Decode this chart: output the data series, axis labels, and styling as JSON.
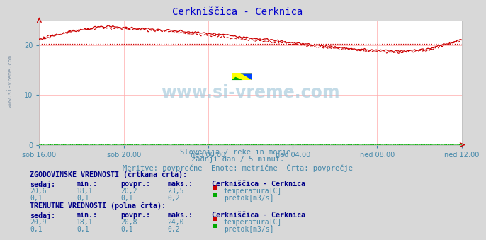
{
  "title": "Cerkniščica - Cerknica",
  "subtitle1": "Slovenija / reke in morje.",
  "subtitle2": "zadnji dan / 5 minut.",
  "subtitle3": "Meritve: povprečne  Enote: metrične  Črta: povprečje",
  "watermark_plot": "www.si-vreme.com",
  "watermark_side": "www.si-vreme.com",
  "xlabel_ticks": [
    "sob 16:00",
    "sob 20:00",
    "ned 00:00",
    "ned 04:00",
    "ned 08:00",
    "ned 12:00"
  ],
  "ylim": [
    0,
    25
  ],
  "yticks": [
    0,
    10,
    20
  ],
  "grid_color": "#ffaaaa",
  "bg_color": "#d8d8d8",
  "plot_bg": "#ffffff",
  "title_color": "#0000cc",
  "subtitle_color": "#4488aa",
  "label_color": "#4488aa",
  "watermark_color": "#aaccdd",
  "temp_color": "#cc0000",
  "flow_color": "#00aa00",
  "hist_section_title": "ZGODOVINSKE VREDNOSTI (črtkana črta):",
  "curr_section_title": "TRENUTNE VREDNOSTI (polna črta):",
  "table_header": [
    "sedaj:",
    "min.:",
    "povpr.:",
    "maks.:"
  ],
  "station_name": "Cerkniščica - Cerknica",
  "hist_temp": [
    20.6,
    18.1,
    20.2,
    23.5
  ],
  "hist_flow": [
    0.1,
    0.1,
    0.1,
    0.2
  ],
  "curr_temp": [
    20.9,
    18.1,
    20.8,
    24.0
  ],
  "curr_flow": [
    0.1,
    0.1,
    0.1,
    0.2
  ],
  "temp_label": "temperatura[C]",
  "flow_label": "pretok[m3/s]",
  "avg_temp": 20.2,
  "avg_flow": 0.1,
  "n_points": 288
}
